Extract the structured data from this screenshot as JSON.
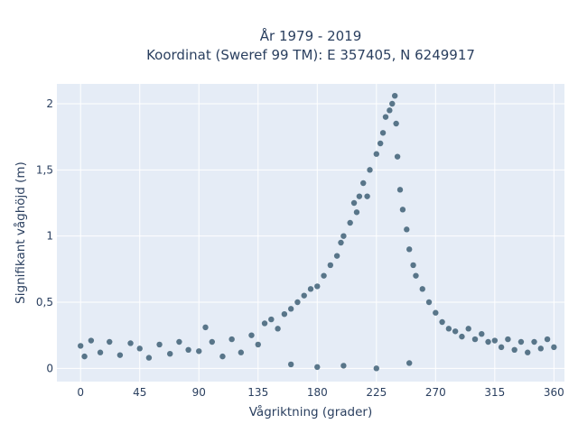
{
  "chart_data": {
    "type": "scatter",
    "title": "År 1979 - 2019",
    "subtitle": "Koordinat (Sweref 99 TM): E 357405, N 6249917",
    "xlabel": "Vågriktning (grader)",
    "ylabel": "Signifikant våghöjd (m)",
    "xlim": [
      -18,
      368
    ],
    "ylim": [
      -0.1,
      2.15
    ],
    "xticks": [
      0,
      45,
      90,
      135,
      180,
      225,
      270,
      315,
      360
    ],
    "xtick_labels": [
      "0",
      "45",
      "90",
      "135",
      "180",
      "225",
      "270",
      "315",
      "360"
    ],
    "yticks": [
      0,
      0.5,
      1,
      1.5,
      2
    ],
    "ytick_labels": [
      "0",
      "0,5",
      "1",
      "1,5",
      "2"
    ],
    "grid": true,
    "background": "#e5ecf6",
    "marker_color": "#34586e",
    "series": [
      {
        "points": [
          [
            0,
            0.17
          ],
          [
            3,
            0.09
          ],
          [
            8,
            0.21
          ],
          [
            15,
            0.12
          ],
          [
            22,
            0.2
          ],
          [
            30,
            0.1
          ],
          [
            38,
            0.19
          ],
          [
            45,
            0.15
          ],
          [
            52,
            0.08
          ],
          [
            60,
            0.18
          ],
          [
            68,
            0.11
          ],
          [
            75,
            0.2
          ],
          [
            82,
            0.14
          ],
          [
            90,
            0.13
          ],
          [
            95,
            0.31
          ],
          [
            100,
            0.2
          ],
          [
            108,
            0.09
          ],
          [
            115,
            0.22
          ],
          [
            122,
            0.12
          ],
          [
            130,
            0.25
          ],
          [
            135,
            0.18
          ],
          [
            140,
            0.34
          ],
          [
            145,
            0.37
          ],
          [
            150,
            0.3
          ],
          [
            155,
            0.41
          ],
          [
            160,
            0.45
          ],
          [
            165,
            0.5
          ],
          [
            170,
            0.55
          ],
          [
            175,
            0.6
          ],
          [
            180,
            0.62
          ],
          [
            185,
            0.7
          ],
          [
            190,
            0.78
          ],
          [
            195,
            0.85
          ],
          [
            198,
            0.95
          ],
          [
            200,
            1.0
          ],
          [
            205,
            1.1
          ],
          [
            208,
            1.25
          ],
          [
            210,
            1.18
          ],
          [
            212,
            1.3
          ],
          [
            215,
            1.4
          ],
          [
            218,
            1.3
          ],
          [
            220,
            1.5
          ],
          [
            225,
            1.62
          ],
          [
            228,
            1.7
          ],
          [
            230,
            1.78
          ],
          [
            232,
            1.9
          ],
          [
            235,
            1.95
          ],
          [
            237,
            2.0
          ],
          [
            239,
            2.06
          ],
          [
            240,
            1.85
          ],
          [
            241,
            1.6
          ],
          [
            243,
            1.35
          ],
          [
            245,
            1.2
          ],
          [
            248,
            1.05
          ],
          [
            250,
            0.9
          ],
          [
            253,
            0.78
          ],
          [
            255,
            0.7
          ],
          [
            260,
            0.6
          ],
          [
            265,
            0.5
          ],
          [
            270,
            0.42
          ],
          [
            275,
            0.35
          ],
          [
            280,
            0.3
          ],
          [
            285,
            0.28
          ],
          [
            290,
            0.24
          ],
          [
            295,
            0.3
          ],
          [
            300,
            0.22
          ],
          [
            305,
            0.26
          ],
          [
            310,
            0.2
          ],
          [
            315,
            0.21
          ],
          [
            320,
            0.16
          ],
          [
            325,
            0.22
          ],
          [
            330,
            0.14
          ],
          [
            335,
            0.2
          ],
          [
            340,
            0.12
          ],
          [
            345,
            0.2
          ],
          [
            350,
            0.15
          ],
          [
            355,
            0.22
          ],
          [
            360,
            0.16
          ],
          [
            180,
            0.01
          ],
          [
            225,
            0.0
          ],
          [
            200,
            0.02
          ],
          [
            160,
            0.03
          ],
          [
            250,
            0.04
          ]
        ]
      }
    ]
  }
}
